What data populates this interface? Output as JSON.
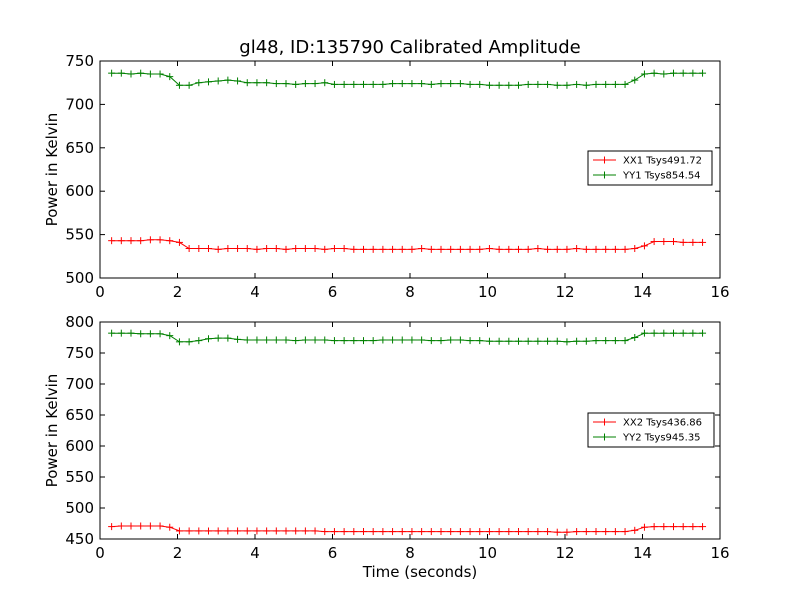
{
  "figure": {
    "title": "gl48, ID:135790 Calibrated Amplitude"
  },
  "chart_data": [
    {
      "type": "line",
      "title": "gl48, ID:135790 Calibrated Amplitude",
      "xlabel": "",
      "ylabel": "Power in Kelvin",
      "xlim": [
        0,
        16
      ],
      "ylim": [
        500,
        750
      ],
      "xticks": [
        "0",
        "2",
        "4",
        "6",
        "8",
        "10",
        "12",
        "14",
        "16"
      ],
      "yticks": [
        "500",
        "550",
        "600",
        "650",
        "700",
        "750"
      ],
      "legend_position": "center-right",
      "grid": false,
      "x": [
        0.3,
        0.55,
        0.8,
        1.05,
        1.3,
        1.55,
        1.8,
        2.05,
        2.3,
        2.55,
        2.8,
        3.05,
        3.3,
        3.55,
        3.8,
        4.05,
        4.3,
        4.55,
        4.8,
        5.05,
        5.3,
        5.55,
        5.8,
        6.05,
        6.3,
        6.55,
        6.8,
        7.05,
        7.3,
        7.55,
        7.8,
        8.05,
        8.3,
        8.55,
        8.8,
        9.05,
        9.3,
        9.55,
        9.8,
        10.05,
        10.3,
        10.55,
        10.8,
        11.05,
        11.3,
        11.55,
        11.8,
        12.05,
        12.3,
        12.55,
        12.8,
        13.05,
        13.3,
        13.55,
        13.8,
        14.05,
        14.3,
        14.55,
        14.8,
        15.05,
        15.3,
        15.55
      ],
      "series": [
        {
          "name": "XX1 Tsys491.72",
          "color": "#ff0000",
          "values": [
            543,
            543,
            543,
            543,
            544,
            544,
            543,
            541,
            534,
            534,
            534,
            533,
            534,
            534,
            534,
            533,
            534,
            534,
            533,
            534,
            534,
            534,
            533,
            534,
            534,
            533,
            533,
            533,
            533,
            533,
            533,
            533,
            534,
            533,
            533,
            533,
            533,
            533,
            533,
            534,
            533,
            533,
            533,
            533,
            534,
            533,
            533,
            533,
            534,
            533,
            533,
            533,
            533,
            533,
            534,
            537,
            542,
            542,
            542,
            541,
            541,
            541
          ]
        },
        {
          "name": "YY1 Tsys854.54",
          "color": "#008000",
          "values": [
            736,
            736,
            735,
            736,
            735,
            735,
            732,
            722,
            722,
            725,
            726,
            727,
            728,
            727,
            725,
            725,
            725,
            724,
            724,
            723,
            724,
            724,
            725,
            723,
            723,
            723,
            723,
            723,
            723,
            724,
            724,
            724,
            724,
            723,
            724,
            724,
            724,
            723,
            723,
            722,
            722,
            722,
            722,
            723,
            723,
            723,
            722,
            722,
            723,
            722,
            723,
            723,
            723,
            723,
            728,
            735,
            736,
            735,
            736,
            736,
            736,
            736
          ]
        }
      ]
    },
    {
      "type": "line",
      "title": "",
      "xlabel": "Time (seconds)",
      "ylabel": "Power in Kelvin",
      "xlim": [
        0,
        16
      ],
      "ylim": [
        450,
        800
      ],
      "xticks": [
        "0",
        "2",
        "4",
        "6",
        "8",
        "10",
        "12",
        "14",
        "16"
      ],
      "yticks": [
        "450",
        "500",
        "550",
        "600",
        "650",
        "700",
        "750",
        "800"
      ],
      "legend_position": "center-right",
      "grid": false,
      "x": [
        0.3,
        0.55,
        0.8,
        1.05,
        1.3,
        1.55,
        1.8,
        2.05,
        2.3,
        2.55,
        2.8,
        3.05,
        3.3,
        3.55,
        3.8,
        4.05,
        4.3,
        4.55,
        4.8,
        5.05,
        5.3,
        5.55,
        5.8,
        6.05,
        6.3,
        6.55,
        6.8,
        7.05,
        7.3,
        7.55,
        7.8,
        8.05,
        8.3,
        8.55,
        8.8,
        9.05,
        9.3,
        9.55,
        9.8,
        10.05,
        10.3,
        10.55,
        10.8,
        11.05,
        11.3,
        11.55,
        11.8,
        12.05,
        12.3,
        12.55,
        12.8,
        13.05,
        13.3,
        13.55,
        13.8,
        14.05,
        14.3,
        14.55,
        14.8,
        15.05,
        15.3,
        15.55
      ],
      "series": [
        {
          "name": "XX2 Tsys436.86",
          "color": "#ff0000",
          "values": [
            470,
            471,
            471,
            471,
            471,
            471,
            469,
            463,
            463,
            463,
            463,
            463,
            463,
            463,
            463,
            463,
            463,
            463,
            463,
            463,
            463,
            463,
            462,
            462,
            462,
            462,
            462,
            462,
            462,
            462,
            462,
            462,
            462,
            462,
            462,
            462,
            462,
            462,
            462,
            462,
            462,
            462,
            462,
            462,
            462,
            462,
            461,
            461,
            462,
            462,
            462,
            462,
            462,
            462,
            464,
            469,
            470,
            470,
            470,
            470,
            470,
            470
          ]
        },
        {
          "name": "YY2 Tsys945.35",
          "color": "#008000",
          "values": [
            782,
            782,
            782,
            781,
            781,
            781,
            778,
            768,
            768,
            770,
            773,
            774,
            774,
            772,
            771,
            771,
            771,
            771,
            771,
            770,
            771,
            771,
            771,
            770,
            770,
            770,
            770,
            770,
            771,
            771,
            771,
            771,
            771,
            770,
            770,
            771,
            771,
            770,
            770,
            769,
            769,
            769,
            769,
            769,
            769,
            769,
            769,
            768,
            769,
            769,
            770,
            770,
            770,
            770,
            775,
            782,
            782,
            782,
            782,
            782,
            782,
            782
          ]
        }
      ]
    }
  ]
}
